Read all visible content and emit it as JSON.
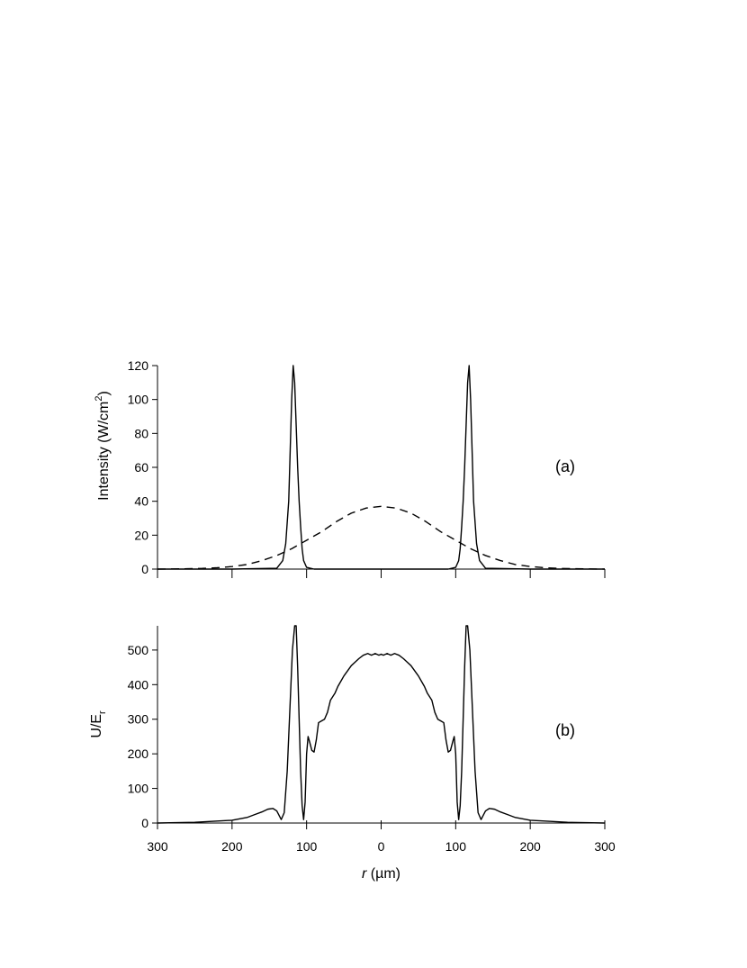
{
  "chart_data": [
    {
      "id": "a",
      "type": "line",
      "panel_label": "(a)",
      "ylabel_main": "Intensity (W/cm",
      "ylabel_sup": "2",
      "ylabel_close": ")",
      "xlim": [
        -300,
        300
      ],
      "ylim": [
        0,
        120
      ],
      "yticks": [
        0,
        20,
        40,
        60,
        80,
        100,
        120
      ],
      "xticks": [
        -300,
        -200,
        -100,
        0,
        100,
        200,
        300
      ],
      "series": [
        {
          "style": "solid",
          "x": [
            -300,
            -200,
            -140,
            -132,
            -128,
            -124,
            -122,
            -120,
            -118,
            -116,
            -114,
            -112,
            -110,
            -108,
            -106,
            -104,
            -100,
            -90,
            -50,
            0,
            50,
            90,
            100,
            104,
            106,
            108,
            110,
            112,
            114,
            116,
            118,
            120,
            122,
            124,
            128,
            132,
            140,
            200,
            300
          ],
          "y": [
            0,
            0,
            0.5,
            5,
            15,
            40,
            70,
            100,
            120,
            110,
            85,
            60,
            40,
            25,
            12,
            5,
            1,
            0,
            0,
            0,
            0,
            0,
            1,
            5,
            12,
            25,
            40,
            60,
            85,
            110,
            120,
            100,
            70,
            40,
            15,
            5,
            0.5,
            0,
            0
          ]
        },
        {
          "style": "dashed",
          "x": [
            -300,
            -280,
            -260,
            -240,
            -220,
            -200,
            -180,
            -160,
            -140,
            -120,
            -100,
            -80,
            -60,
            -40,
            -20,
            0,
            20,
            40,
            60,
            80,
            100,
            120,
            140,
            160,
            180,
            200,
            220,
            240,
            260,
            280,
            300
          ],
          "y": [
            0,
            0.1,
            0.2,
            0.4,
            0.8,
            1.5,
            2.7,
            5,
            8,
            12,
            17,
            22,
            28,
            33,
            36,
            37,
            36,
            33,
            28,
            22,
            17,
            12,
            8,
            5,
            2.7,
            1.5,
            0.8,
            0.4,
            0.2,
            0.1,
            0
          ]
        }
      ]
    },
    {
      "id": "b",
      "type": "line",
      "panel_label": "(b)",
      "ylabel_main": "U/E",
      "ylabel_sub": "r",
      "xlabel_italic": "r",
      "xlabel_rest": " (µm)",
      "xlim": [
        -300,
        300
      ],
      "ylim": [
        0,
        570
      ],
      "yticks": [
        0,
        100,
        200,
        300,
        400,
        500
      ],
      "xticks": [
        -300,
        -200,
        -100,
        0,
        100,
        200,
        300
      ],
      "xticklabels": [
        "300",
        "200",
        "100",
        "0",
        "100",
        "200",
        "300"
      ],
      "series": [
        {
          "style": "solid",
          "x": [
            -300,
            -250,
            -200,
            -180,
            -170,
            -160,
            -152,
            -145,
            -140,
            -134,
            -130,
            -126,
            -122,
            -119,
            -116,
            -114,
            -112,
            -110,
            -108,
            -106,
            -104,
            -102,
            -100,
            -98,
            -96,
            -93,
            -90,
            -87,
            -84,
            -80,
            -76,
            -72,
            -68,
            -65,
            -62,
            -58,
            -54,
            -50,
            -45,
            -40,
            -35,
            -30,
            -24,
            -18,
            -13,
            -8,
            -3,
            0,
            3,
            8,
            13,
            18,
            24,
            30,
            35,
            40,
            45,
            50,
            54,
            58,
            62,
            65,
            68,
            72,
            76,
            80,
            84,
            87,
            90,
            93,
            96,
            98,
            100,
            102,
            104,
            106,
            108,
            110,
            112,
            114,
            116,
            119,
            122,
            126,
            130,
            134,
            140,
            145,
            152,
            160,
            170,
            180,
            200,
            250,
            300
          ],
          "y": [
            0,
            2,
            8,
            16,
            24,
            32,
            40,
            42,
            35,
            10,
            30,
            150,
            350,
            500,
            570,
            570,
            450,
            300,
            150,
            50,
            10,
            60,
            200,
            250,
            235,
            210,
            205,
            240,
            290,
            295,
            300,
            320,
            355,
            365,
            375,
            395,
            410,
            425,
            440,
            455,
            465,
            475,
            485,
            490,
            485,
            490,
            485,
            488,
            485,
            490,
            485,
            490,
            485,
            475,
            465,
            455,
            440,
            425,
            410,
            395,
            375,
            365,
            355,
            320,
            300,
            295,
            290,
            240,
            205,
            210,
            235,
            250,
            200,
            60,
            10,
            50,
            150,
            300,
            450,
            570,
            570,
            500,
            350,
            150,
            30,
            10,
            35,
            42,
            40,
            32,
            24,
            16,
            8,
            2,
            0
          ]
        }
      ]
    }
  ]
}
